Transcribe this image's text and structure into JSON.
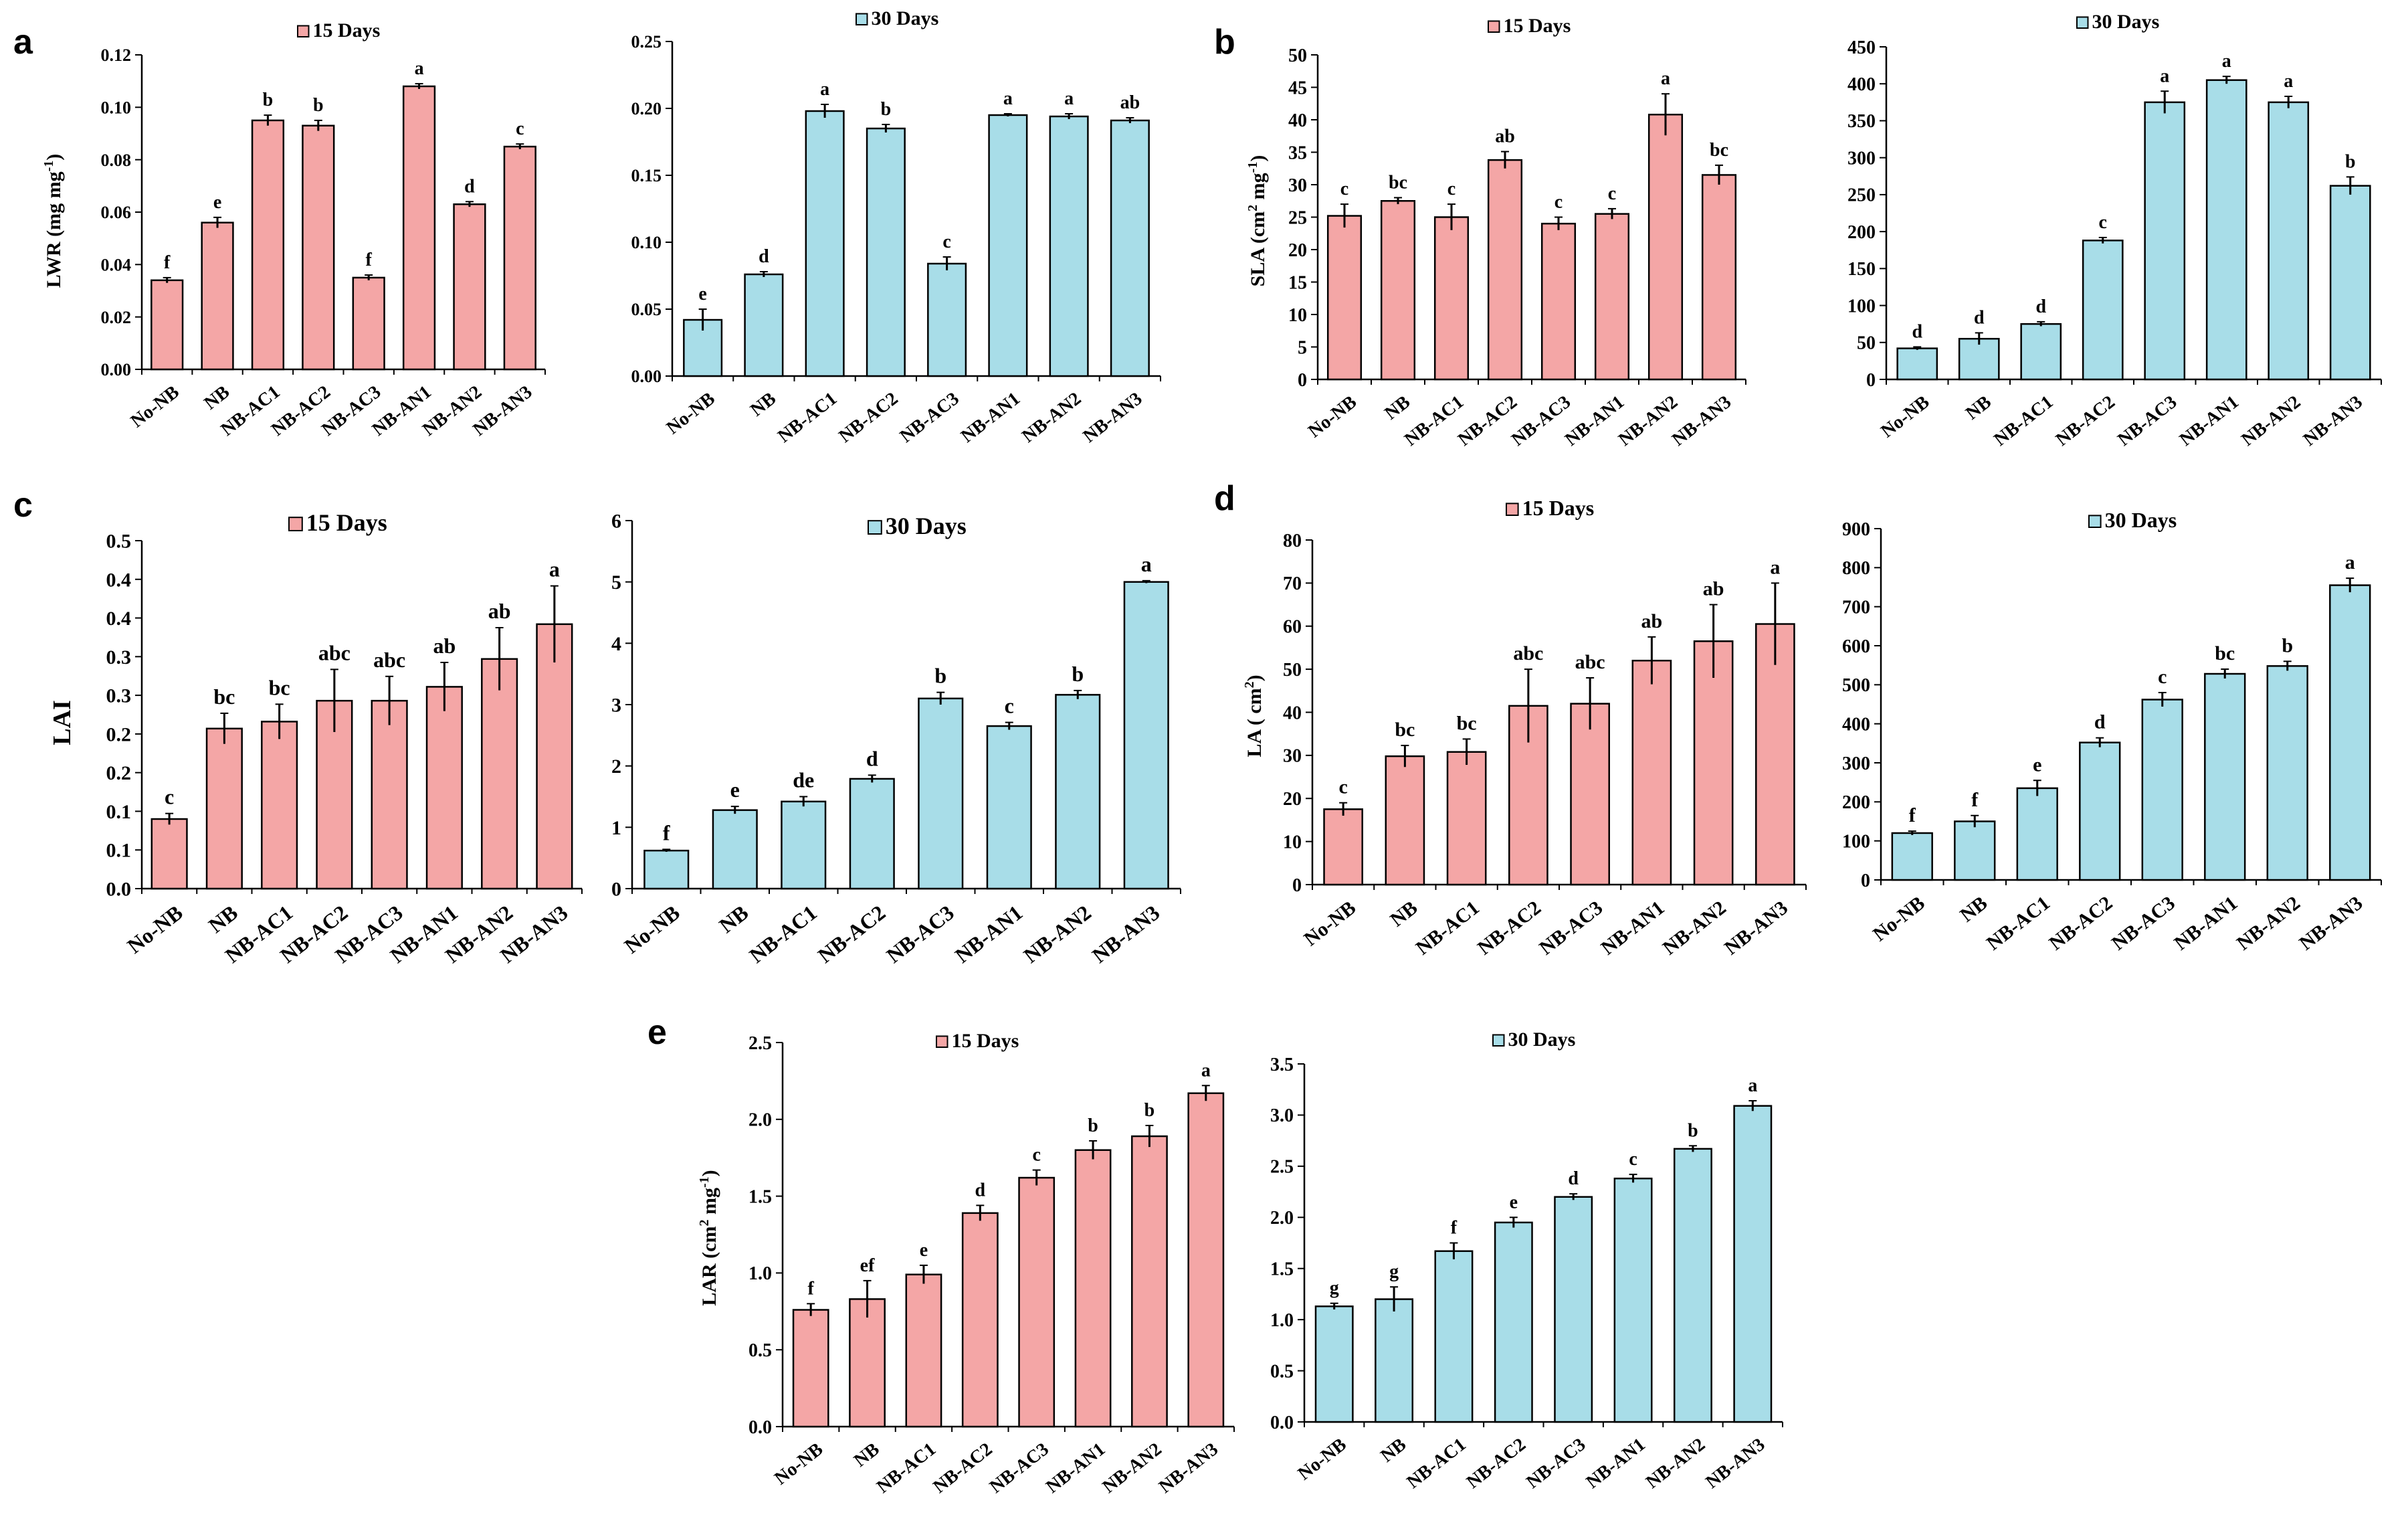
{
  "colors": {
    "day15": "#f4a6a6",
    "day30": "#a8dde8",
    "stroke": "#000000"
  },
  "legend": {
    "day15": "15 Days",
    "day30": "30 Days"
  },
  "panels": [
    {
      "label": "a",
      "ylabel": "LWR  (mg mg",
      "ysup": "-1",
      "yclose": ")"
    },
    {
      "label": "b",
      "ylabel": "SLA (cm",
      "ysup": "2",
      "ymid": " mg",
      "ysup2": "-1",
      "yclose": ")"
    },
    {
      "label": "c",
      "ylabel": "LAI"
    },
    {
      "label": "d",
      "ylabel": "LA ( cm",
      "ysup": "2",
      "yclose": ")"
    },
    {
      "label": "e",
      "ylabel": "LAR  (cm",
      "ysup": "2",
      "ymid": " mg",
      "ysup2": "-1",
      "yclose": ")"
    }
  ],
  "chart_data": [
    {
      "id": "a15",
      "type": "bar",
      "panel": "a",
      "series_name": "15 Days",
      "categories": [
        "No-NB",
        "NB",
        "NB-AC1",
        "NB-AC2",
        "NB-AC3",
        "NB-AN1",
        "NB-AN2",
        "NB-AN3"
      ],
      "values": [
        0.034,
        0.056,
        0.095,
        0.093,
        0.035,
        0.108,
        0.063,
        0.085
      ],
      "errors": [
        0.001,
        0.002,
        0.002,
        0.002,
        0.001,
        0.001,
        0.001,
        0.001
      ],
      "letters": [
        "f",
        "e",
        "b",
        "b",
        "f",
        "a",
        "d",
        "c"
      ],
      "ylim": [
        0,
        0.12
      ],
      "yticks": [
        "0.00",
        "0.02",
        "0.04",
        "0.06",
        "0.08",
        "0.10",
        "0.12"
      ]
    },
    {
      "id": "a30",
      "type": "bar",
      "panel": "a",
      "series_name": "30 Days",
      "categories": [
        "No-NB",
        "NB",
        "NB-AC1",
        "NB-AC2",
        "NB-AC3",
        "NB-AN1",
        "NB-AN2",
        "NB-AN3"
      ],
      "values": [
        0.042,
        0.076,
        0.198,
        0.185,
        0.084,
        0.195,
        0.194,
        0.191
      ],
      "errors": [
        0.008,
        0.002,
        0.005,
        0.003,
        0.005,
        0.001,
        0.002,
        0.002
      ],
      "letters": [
        "e",
        "d",
        "a",
        "b",
        "c",
        "a",
        "a",
        "ab"
      ],
      "ylim": [
        0,
        0.25
      ],
      "yticks": [
        "0.00",
        "0.05",
        "0.10",
        "0.15",
        "0.20",
        "0.25"
      ]
    },
    {
      "id": "b15",
      "type": "bar",
      "panel": "b",
      "series_name": "15 Days",
      "categories": [
        "No-NB",
        "NB",
        "NB-AC1",
        "NB-AC2",
        "NB-AC3",
        "NB-AN1",
        "NB-AN2",
        "NB-AN3"
      ],
      "values": [
        25.2,
        27.5,
        25.0,
        33.8,
        24.0,
        25.5,
        40.8,
        31.5
      ],
      "errors": [
        1.8,
        0.5,
        2.0,
        1.3,
        1.0,
        0.8,
        3.2,
        1.5
      ],
      "letters": [
        "c",
        "bc",
        "c",
        "ab",
        "c",
        "c",
        "a",
        "bc"
      ],
      "ylim": [
        0,
        50
      ],
      "yticks": [
        "0",
        "5",
        "10",
        "15",
        "20",
        "25",
        "30",
        "35",
        "40",
        "45",
        "50"
      ]
    },
    {
      "id": "b30",
      "type": "bar",
      "panel": "b",
      "series_name": "30 Days",
      "categories": [
        "No-NB",
        "NB",
        "NB-AC1",
        "NB-AC2",
        "NB-AC3",
        "NB-AN1",
        "NB-AN2",
        "NB-AN3"
      ],
      "values": [
        42,
        55,
        75,
        188,
        375,
        405,
        375,
        262
      ],
      "errors": [
        2,
        8,
        3,
        4,
        15,
        5,
        8,
        12
      ],
      "letters": [
        "d",
        "d",
        "d",
        "c",
        "a",
        "a",
        "a",
        "b"
      ],
      "ylim": [
        0,
        450
      ],
      "yticks": [
        "0",
        "50",
        "100",
        "150",
        "200",
        "250",
        "300",
        "350",
        "400",
        "450"
      ]
    },
    {
      "id": "c15",
      "type": "bar",
      "panel": "c",
      "series_name": "15 Days",
      "categories": [
        "No-NB",
        "NB",
        "NB-AC1",
        "NB-AC2",
        "NB-AC3",
        "NB-AN1",
        "NB-AN2",
        "NB-AN3"
      ],
      "values": [
        0.1,
        0.23,
        0.24,
        0.27,
        0.27,
        0.29,
        0.33,
        0.38
      ],
      "errors": [
        0.008,
        0.022,
        0.025,
        0.045,
        0.035,
        0.035,
        0.045,
        0.055
      ],
      "letters": [
        "c",
        "bc",
        "bc",
        "abc",
        "abc",
        "ab",
        "ab",
        "a"
      ],
      "ylim": [
        0,
        0.5
      ],
      "yticks": [
        "0.0",
        "0.1",
        "0.1",
        "0.2",
        "0.2",
        "0.3",
        "0.3",
        "0.4",
        "0.4",
        "0.5"
      ]
    },
    {
      "id": "c30",
      "type": "bar",
      "panel": "c",
      "series_name": "30 Days",
      "categories": [
        "No-NB",
        "NB",
        "NB-AC1",
        "NB-AC2",
        "NB-AC3",
        "NB-AN1",
        "NB-AN2",
        "NB-AN3"
      ],
      "values": [
        0.62,
        1.28,
        1.42,
        1.79,
        3.1,
        2.65,
        3.16,
        5.0
      ],
      "errors": [
        0.02,
        0.06,
        0.08,
        0.06,
        0.1,
        0.06,
        0.07,
        0.02
      ],
      "letters": [
        "f",
        "e",
        "de",
        "d",
        "b",
        "c",
        "b",
        "a"
      ],
      "ylim": [
        0,
        6
      ],
      "yticks": [
        "0",
        "1",
        "2",
        "3",
        "4",
        "5",
        "6"
      ]
    },
    {
      "id": "d15",
      "type": "bar",
      "panel": "d",
      "series_name": "15 Days",
      "categories": [
        "No-NB",
        "NB",
        "NB-AC1",
        "NB-AC2",
        "NB-AC3",
        "NB-AN1",
        "NB-AN2",
        "NB-AN3"
      ],
      "values": [
        17.5,
        29.8,
        30.8,
        41.5,
        42.0,
        52.0,
        56.5,
        60.5
      ],
      "errors": [
        1.5,
        2.5,
        3.0,
        8.5,
        6.0,
        5.5,
        8.5,
        9.5
      ],
      "letters": [
        "c",
        "bc",
        "bc",
        "abc",
        "abc",
        "ab",
        "ab",
        "a"
      ],
      "ylim": [
        0,
        80
      ],
      "yticks": [
        "0",
        "10",
        "20",
        "30",
        "40",
        "50",
        "60",
        "70",
        "80"
      ]
    },
    {
      "id": "d30",
      "type": "bar",
      "panel": "d",
      "series_name": "30 Days",
      "categories": [
        "No-NB",
        "NB",
        "NB-AC1",
        "NB-AC2",
        "NB-AC3",
        "NB-AN1",
        "NB-AN2",
        "NB-AN3"
      ],
      "values": [
        120,
        150,
        235,
        352,
        462,
        528,
        548,
        755
      ],
      "errors": [
        5,
        15,
        20,
        12,
        18,
        12,
        12,
        18
      ],
      "letters": [
        "f",
        "f",
        "e",
        "d",
        "c",
        "bc",
        "b",
        "a"
      ],
      "ylim": [
        0,
        900
      ],
      "yticks": [
        "0",
        "100",
        "200",
        "300",
        "400",
        "500",
        "600",
        "700",
        "800",
        "900"
      ]
    },
    {
      "id": "e15",
      "type": "bar",
      "panel": "e",
      "series_name": "15 Days",
      "categories": [
        "No-NB",
        "NB",
        "NB-AC1",
        "NB-AC2",
        "NB-AC3",
        "NB-AN1",
        "NB-AN2",
        "NB-AN3"
      ],
      "values": [
        0.76,
        0.83,
        0.99,
        1.39,
        1.62,
        1.8,
        1.89,
        2.17
      ],
      "errors": [
        0.04,
        0.12,
        0.06,
        0.05,
        0.05,
        0.06,
        0.07,
        0.05
      ],
      "letters": [
        "f",
        "ef",
        "e",
        "d",
        "c",
        "b",
        "b",
        "a"
      ],
      "ylim": [
        0,
        2.5
      ],
      "yticks": [
        "0.0",
        "0.5",
        "1.0",
        "1.5",
        "2.0",
        "2.5"
      ]
    },
    {
      "id": "e30",
      "type": "bar",
      "panel": "e",
      "series_name": "30 Days",
      "categories": [
        "No-NB",
        "NB",
        "NB-AC1",
        "NB-AC2",
        "NB-AC3",
        "NB-AN1",
        "NB-AN2",
        "NB-AN3"
      ],
      "values": [
        1.13,
        1.2,
        1.67,
        1.95,
        2.2,
        2.38,
        2.67,
        3.09
      ],
      "errors": [
        0.03,
        0.12,
        0.08,
        0.05,
        0.03,
        0.04,
        0.03,
        0.05
      ],
      "letters": [
        "g",
        "g",
        "f",
        "e",
        "d",
        "c",
        "b",
        "a"
      ],
      "ylim": [
        0,
        3.5
      ],
      "yticks": [
        "0.0",
        "0.5",
        "1.0",
        "1.5",
        "2.0",
        "2.5",
        "3.0",
        "3.5"
      ]
    }
  ]
}
